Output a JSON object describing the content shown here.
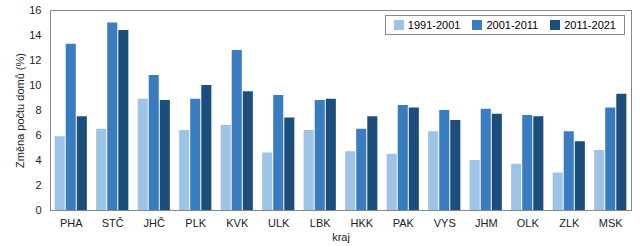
{
  "chart_data": {
    "type": "bar",
    "x_label": "kraj",
    "y_label": "Změna počtu domů (%)",
    "categories": [
      "PHA",
      "STČ",
      "JHČ",
      "PLK",
      "KVK",
      "ULK",
      "LBK",
      "HKK",
      "PAK",
      "VYS",
      "JHM",
      "OLK",
      "ZLK",
      "MSK"
    ],
    "series": [
      {
        "name": "1991-2001",
        "color": "#9dc3e6",
        "values": [
          5.9,
          6.5,
          8.9,
          6.4,
          6.8,
          4.6,
          6.4,
          4.7,
          4.5,
          6.3,
          4.0,
          3.7,
          3.0,
          4.8
        ]
      },
      {
        "name": "2001-2011",
        "color": "#3a7cc0",
        "values": [
          13.3,
          15.0,
          10.8,
          8.9,
          12.8,
          9.2,
          8.8,
          6.5,
          8.4,
          8.0,
          8.1,
          7.6,
          6.3,
          8.2
        ]
      },
      {
        "name": "2011-2021",
        "color": "#1c4e7c",
        "values": [
          7.5,
          14.4,
          8.8,
          10.0,
          9.5,
          7.4,
          8.9,
          7.5,
          8.2,
          7.2,
          7.7,
          7.5,
          5.5,
          9.3
        ]
      }
    ],
    "ylim": [
      0,
      16
    ],
    "yticks": [
      0,
      2,
      4,
      6,
      8,
      10,
      12,
      14,
      16
    ],
    "grid": false,
    "legend": "top-right"
  }
}
